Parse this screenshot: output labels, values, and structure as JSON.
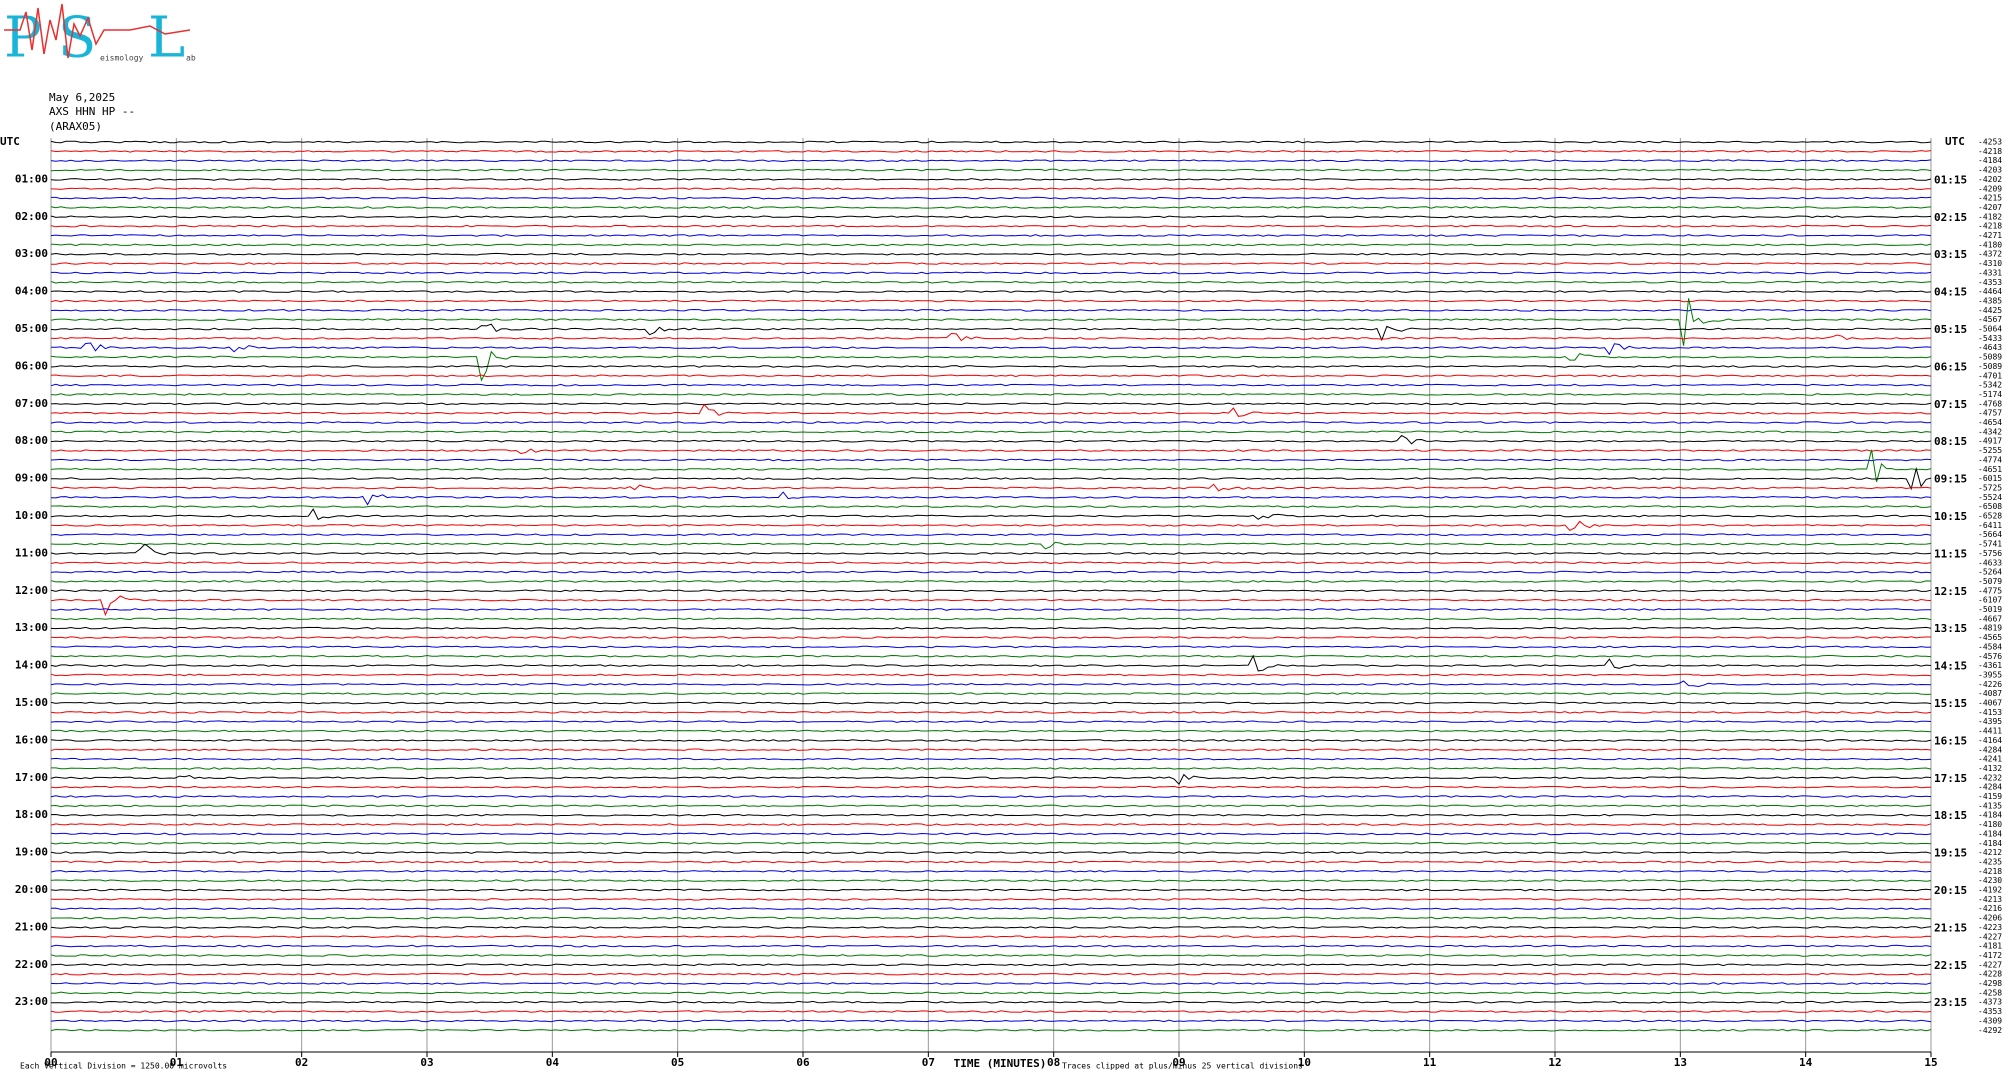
{
  "logo": {
    "letters": [
      "P",
      "S",
      "L"
    ],
    "words": [
      "eismology",
      "ab"
    ]
  },
  "header": {
    "date": "May 6,2025",
    "station": "AXS HHN HP --",
    "network": "(ARAX05)"
  },
  "left_title": "UTC",
  "right_title": "UTC",
  "left_labels": [
    "01:00",
    "02:00",
    "03:00",
    "04:00",
    "05:00",
    "06:00",
    "07:00",
    "08:00",
    "09:00",
    "10:00",
    "11:00",
    "12:00",
    "13:00",
    "14:00",
    "15:00",
    "16:00",
    "17:00",
    "18:00",
    "19:00",
    "20:00",
    "21:00",
    "22:00",
    "23:00"
  ],
  "right_labels": [
    "01:15",
    "02:15",
    "03:15",
    "04:15",
    "05:15",
    "06:15",
    "07:15",
    "08:15",
    "09:15",
    "10:15",
    "11:15",
    "12:15",
    "13:15",
    "14:15",
    "15:15",
    "16:15",
    "17:15",
    "18:15",
    "19:15",
    "20:15",
    "21:15",
    "22:15",
    "23:15"
  ],
  "trace_offsets": [
    -4253,
    -4218,
    -4184,
    -4203,
    -4202,
    -4209,
    -4215,
    -4207,
    -4182,
    -4218,
    -4271,
    -4180,
    -4372,
    -4310,
    -4331,
    -4353,
    -4464,
    -4385,
    -4425,
    -4567,
    -5064,
    -5433,
    -4643,
    -5089,
    -5089,
    -4701,
    -5342,
    -5174,
    -4768,
    -4757,
    -4654,
    -4342,
    -4917,
    -5255,
    -4774,
    -4651,
    -6015,
    -5725,
    -5524,
    -6508,
    -6528,
    -6411,
    -5664,
    -5741,
    -5756,
    -4633,
    -5264,
    -5079,
    -4775,
    -6107,
    -5019,
    -4667,
    -4819,
    -4565,
    -4584,
    -4576,
    -4361,
    -3955,
    -4226,
    -4087,
    -4067,
    -4153,
    -4395,
    -4411,
    -4164,
    -4284,
    -4241,
    -4132,
    -4232,
    -4284,
    -4159,
    -4135,
    -4184,
    -4180,
    -4184,
    -4184,
    -4212,
    -4235,
    -4218,
    -4230,
    -4192,
    -4213,
    -4216,
    -4206,
    -4223,
    -4227,
    -4181,
    -4172,
    -4227,
    -4228,
    -4298,
    -4258,
    -4373,
    -4353,
    -4309,
    -4292
  ],
  "x_ticks": [
    "00",
    "01",
    "02",
    "03",
    "04",
    "05",
    "06",
    "07",
    "08",
    "09",
    "10",
    "11",
    "12",
    "13",
    "14",
    "15"
  ],
  "x_title": "TIME (MINUTES)",
  "footer": {
    "scale_note": "Each Vertical Division = 1250.00 microvolts",
    "clip_note": "Traces clipped at plus/minus 25 vertical divisions"
  }
}
